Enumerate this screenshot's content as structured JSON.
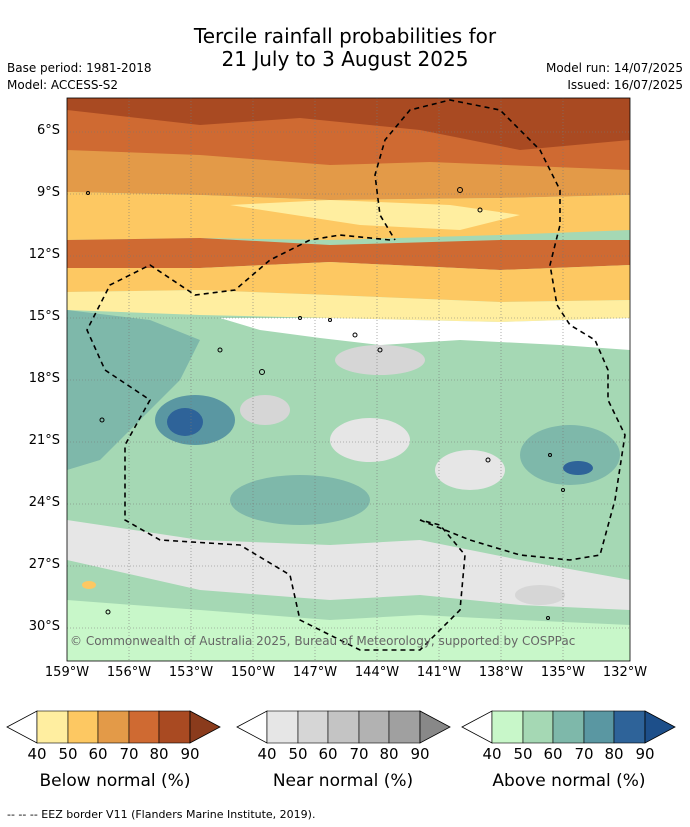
{
  "header": {
    "title_line1": "Tercile rainfall probabilities for",
    "title_line2": "21 July to 3 August 2025",
    "base_period": "Base period: 1981-2018",
    "model": "Model: ACCESS-S2",
    "model_run": "Model run: 14/07/2025",
    "issued": "Issued: 16/07/2025"
  },
  "map": {
    "copyright": "© Commonwealth of Australia 2025, Bureau of Meteorology, supported by COSPPac",
    "lat_labels": [
      "6°S",
      "9°S",
      "12°S",
      "15°S",
      "18°S",
      "21°S",
      "24°S",
      "27°S",
      "30°S"
    ],
    "lon_labels": [
      "159°W",
      "156°W",
      "153°W",
      "150°W",
      "147°W",
      "144°W",
      "141°W",
      "138°W",
      "135°W",
      "132°W"
    ]
  },
  "colorbars": [
    {
      "label": "Below normal (%)",
      "ticks": [
        "40",
        "50",
        "60",
        "70",
        "80",
        "90"
      ],
      "colors": [
        "#ffeea0",
        "#fdc862",
        "#e39a48",
        "#cf6a32",
        "#a94a22"
      ],
      "over": "#8a3b1c"
    },
    {
      "label": "Near normal (%)",
      "ticks": [
        "40",
        "50",
        "60",
        "70",
        "80",
        "90"
      ],
      "colors": [
        "#e6e6e6",
        "#d6d6d6",
        "#c4c4c4",
        "#b2b2b2",
        "#a0a0a0"
      ],
      "over": "#888888"
    },
    {
      "label": "Above normal (%)",
      "ticks": [
        "40",
        "50",
        "60",
        "70",
        "80",
        "90"
      ],
      "colors": [
        "#c8f7c9",
        "#a5d8b4",
        "#7eb8aa",
        "#5a97a2",
        "#2e6399"
      ],
      "over": "#1d4f8a"
    }
  ],
  "footer": {
    "eez_note": "--  --  -- EEZ border V11 (Flanders Marine Institute, 2019)."
  }
}
